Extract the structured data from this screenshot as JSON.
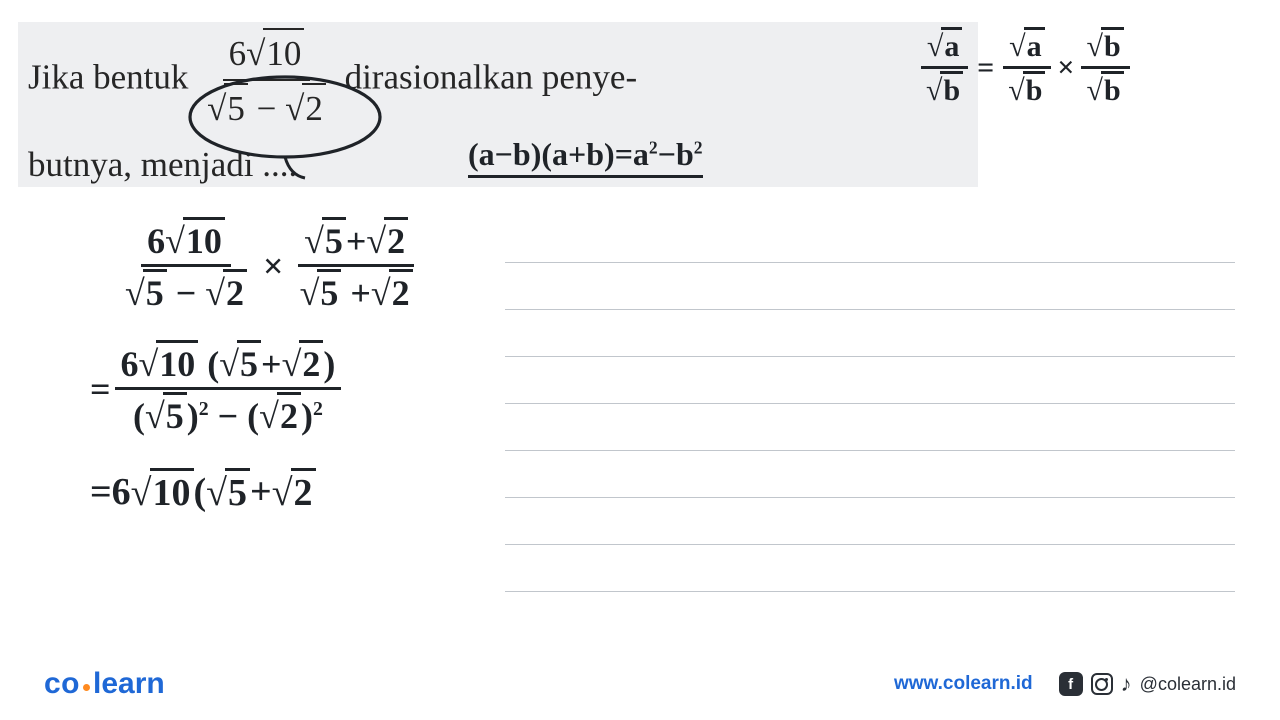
{
  "colors": {
    "question_bg": "#eeeff1",
    "question_text": "#262626",
    "handwriting": "#1f2328",
    "rule_line": "#c1c6cc",
    "logo_blue": "#1f68d6",
    "logo_orange": "#ff8a1f",
    "footer_text": "#2a2f36"
  },
  "question": {
    "prefix1": "Jika bentuk",
    "frac_num": "6",
    "frac_num_radicand": "10",
    "frac_den_rad1": "5",
    "frac_den_op": " − ",
    "frac_den_rad2": "2",
    "middle": "dirasionalkan penye-",
    "line2": "butnya, menjadi ....",
    "font_size": 35
  },
  "hand_top_formula": {
    "text": "(a−b)(a+b)=a",
    "sup1": "2",
    "mid": "−b",
    "sup2": "2",
    "font_size": 32
  },
  "hand_top_frac": {
    "lhs_num_rad": "a",
    "lhs_den_rad": "b",
    "eq": "=",
    "r1_num_rad": "a",
    "r1_den_rad": "b",
    "times": "×",
    "r2_num_rad": "b",
    "r2_den_rad": "b",
    "font_size": 30
  },
  "work": {
    "l1_num_coeff": "6",
    "l1_num_rad": "10",
    "l1_den_rad1": "5",
    "l1_den_op": " − ",
    "l1_den_rad2": "2",
    "l1_times": " × ",
    "l1b_num_rad1": "5",
    "l1b_num_op": "+",
    "l1b_num_rad2": "2",
    "l1b_den_rad1": "5",
    "l1b_den_op": " +",
    "l1b_den_rad2": "2",
    "l2_eq": "= ",
    "l2_num_coeff": "6",
    "l2_num_rad": "10",
    "l2_num_open": " (",
    "l2_num_rad1": "5",
    "l2_num_op": "+",
    "l2_num_rad2": "2",
    "l2_num_close": ")",
    "l2_den_open1": "(",
    "l2_den_rad1": "5",
    "l2_den_close1": ")",
    "l2_den_sup1": "2",
    "l2_den_op": " − ",
    "l2_den_open2": "(",
    "l2_den_rad2": "2",
    "l2_den_close2": ")",
    "l2_den_sup2": "2",
    "l3_eq": "= ",
    "l3_coeff": "6",
    "l3_rad": "10",
    "l3_open": " ( ",
    "l3_rad1": "5",
    "l3_op": " +",
    "l3_rad2": "2",
    "font_size": 36
  },
  "ruled_lines": {
    "count": 8
  },
  "footer": {
    "logo_co": "co",
    "logo_learn": "learn",
    "url": "www.colearn.id",
    "fb_glyph": "f",
    "note_glyph": "♪",
    "handle": "@colearn.id"
  }
}
